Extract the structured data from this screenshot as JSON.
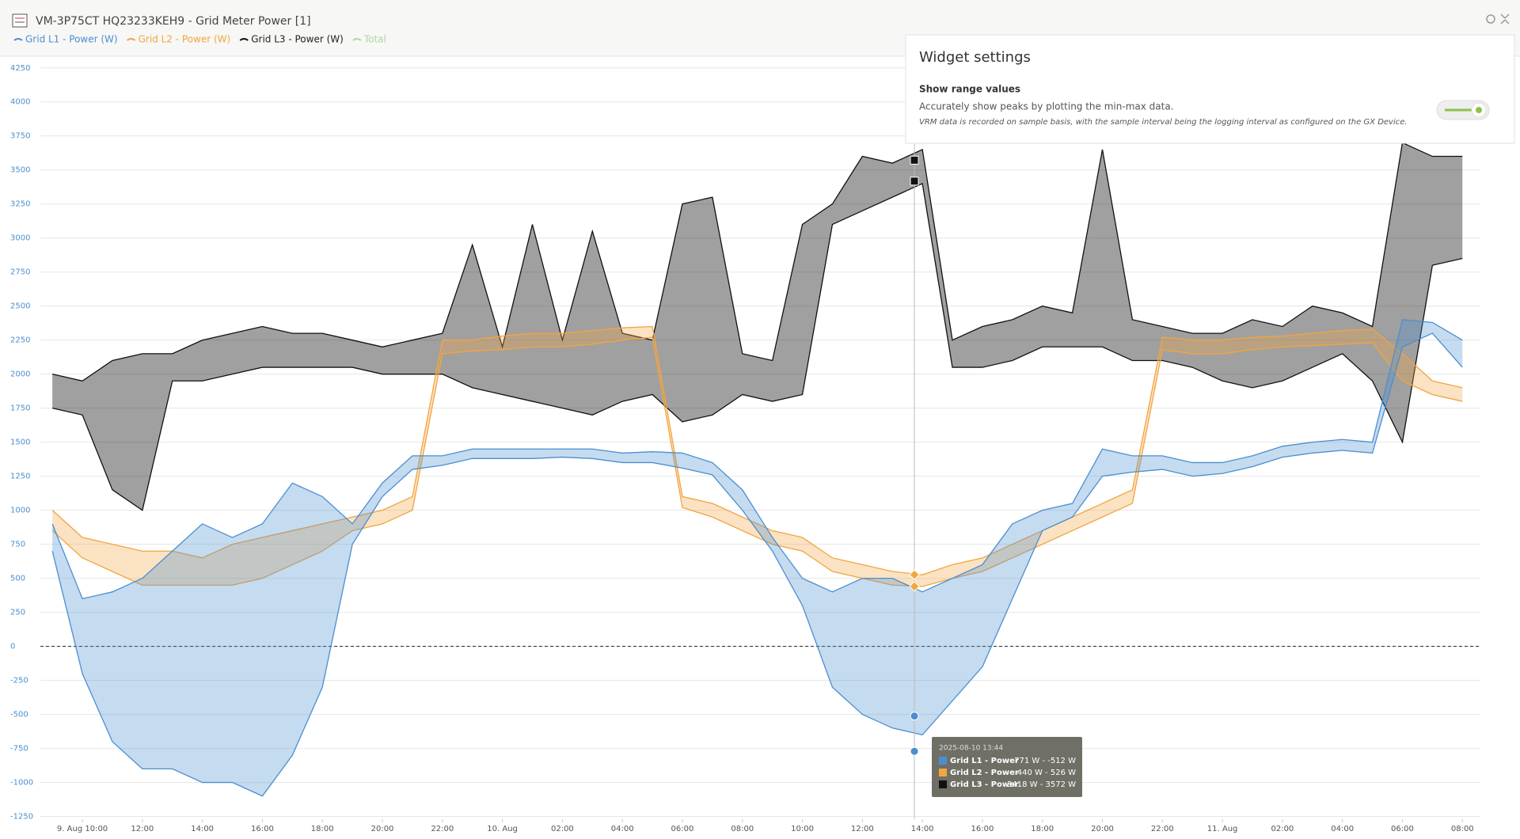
{
  "header": {
    "title": "VM-3P75CT HQ23233KEH9 - Grid Meter Power [1]"
  },
  "widget_settings": {
    "title": "Widget settings",
    "option_title": "Show range values",
    "option_description": "Accurately show peaks by plotting the min-max data.",
    "option_note": "VRM data is recorded on sample basis, with the sample interval being the logging interval as configured on the GX Device.",
    "toggle_on": true
  },
  "chart_data": {
    "type": "range-area",
    "xlim": [
      "2025-08-09T08:36",
      "2025-08-11T08:36"
    ],
    "ylim": [
      -1270,
      4330
    ],
    "yticks": [
      -1250,
      -1000,
      -750,
      -500,
      -250,
      0,
      250,
      500,
      750,
      1000,
      1250,
      1500,
      1750,
      2000,
      2250,
      2500,
      2750,
      3000,
      3250,
      3500,
      3750,
      4000,
      4250
    ],
    "grid": true,
    "xticks": [
      {
        "value": "2025-08-09T10:00",
        "label": "9. Aug 10:00"
      },
      {
        "value": "2025-08-09T12:00",
        "label": "12:00"
      },
      {
        "value": "2025-08-09T14:00",
        "label": "14:00"
      },
      {
        "value": "2025-08-09T16:00",
        "label": "16:00"
      },
      {
        "value": "2025-08-09T18:00",
        "label": "18:00"
      },
      {
        "value": "2025-08-09T20:00",
        "label": "20:00"
      },
      {
        "value": "2025-08-09T22:00",
        "label": "22:00"
      },
      {
        "value": "2025-08-10T00:00",
        "label": "10. Aug"
      },
      {
        "value": "2025-08-10T02:00",
        "label": "02:00"
      },
      {
        "value": "2025-08-10T04:00",
        "label": "04:00"
      },
      {
        "value": "2025-08-10T06:00",
        "label": "06:00"
      },
      {
        "value": "2025-08-10T08:00",
        "label": "08:00"
      },
      {
        "value": "2025-08-10T10:00",
        "label": "10:00"
      },
      {
        "value": "2025-08-10T12:00",
        "label": "12:00"
      },
      {
        "value": "2025-08-10T14:00",
        "label": "14:00"
      },
      {
        "value": "2025-08-10T16:00",
        "label": "16:00"
      },
      {
        "value": "2025-08-10T18:00",
        "label": "18:00"
      },
      {
        "value": "2025-08-10T20:00",
        "label": "20:00"
      },
      {
        "value": "2025-08-10T22:00",
        "label": "22:00"
      },
      {
        "value": "2025-08-11T00:00",
        "label": "11. Aug"
      },
      {
        "value": "2025-08-11T02:00",
        "label": "02:00"
      },
      {
        "value": "2025-08-11T04:00",
        "label": "04:00"
      },
      {
        "value": "2025-08-11T06:00",
        "label": "06:00"
      },
      {
        "value": "2025-08-11T08:00",
        "label": "08:00"
      }
    ],
    "x": [
      "2025-08-09T09:00",
      "2025-08-09T10:00",
      "2025-08-09T11:00",
      "2025-08-09T12:00",
      "2025-08-09T13:00",
      "2025-08-09T14:00",
      "2025-08-09T15:00",
      "2025-08-09T16:00",
      "2025-08-09T17:00",
      "2025-08-09T18:00",
      "2025-08-09T19:00",
      "2025-08-09T20:00",
      "2025-08-09T21:00",
      "2025-08-09T22:00",
      "2025-08-09T23:00",
      "2025-08-10T00:00",
      "2025-08-10T01:00",
      "2025-08-10T02:00",
      "2025-08-10T03:00",
      "2025-08-10T04:00",
      "2025-08-10T05:00",
      "2025-08-10T06:00",
      "2025-08-10T07:00",
      "2025-08-10T08:00",
      "2025-08-10T09:00",
      "2025-08-10T10:00",
      "2025-08-10T11:00",
      "2025-08-10T12:00",
      "2025-08-10T13:00",
      "2025-08-10T14:00",
      "2025-08-10T15:00",
      "2025-08-10T16:00",
      "2025-08-10T17:00",
      "2025-08-10T18:00",
      "2025-08-10T19:00",
      "2025-08-10T20:00",
      "2025-08-10T21:00",
      "2025-08-10T22:00",
      "2025-08-10T23:00",
      "2025-08-11T00:00",
      "2025-08-11T01:00",
      "2025-08-11T02:00",
      "2025-08-11T03:00",
      "2025-08-11T04:00",
      "2025-08-11T05:00",
      "2025-08-11T06:00",
      "2025-08-11T07:00",
      "2025-08-11T08:00"
    ],
    "series": [
      {
        "name": "Grid L1 - Power (W)",
        "color": "#4a8fd0",
        "marker": "circle",
        "high": [
          900,
          350,
          400,
          500,
          700,
          900,
          800,
          900,
          1200,
          1100,
          900,
          1200,
          1400,
          1400,
          1450,
          1450,
          1450,
          1450,
          1450,
          1420,
          1430,
          1420,
          1350,
          1150,
          800,
          500,
          400,
          500,
          500,
          400,
          500,
          600,
          900,
          1000,
          1050,
          1450,
          1400,
          1400,
          1350,
          1350,
          1400,
          1470,
          1500,
          1520,
          1500,
          2400,
          2380,
          2250
        ],
        "low": [
          700,
          -200,
          -700,
          -900,
          -900,
          -1000,
          -1000,
          -1100,
          -800,
          -300,
          750,
          1100,
          1300,
          1330,
          1380,
          1380,
          1380,
          1390,
          1380,
          1350,
          1350,
          1310,
          1260,
          1000,
          700,
          300,
          -300,
          -500,
          -600,
          -650,
          -400,
          -150,
          350,
          850,
          950,
          1250,
          1280,
          1300,
          1250,
          1270,
          1320,
          1390,
          1420,
          1440,
          1420,
          2200,
          2300,
          2050
        ]
      },
      {
        "name": "Grid L2 - Power (W)",
        "color": "#f2a541",
        "marker": "diamond",
        "high": [
          1000,
          800,
          750,
          700,
          700,
          650,
          750,
          800,
          850,
          900,
          950,
          1000,
          1100,
          2250,
          2250,
          2280,
          2300,
          2300,
          2320,
          2340,
          2350,
          1100,
          1050,
          950,
          850,
          800,
          650,
          600,
          550,
          526,
          600,
          650,
          750,
          850,
          950,
          1050,
          1150,
          2270,
          2250,
          2250,
          2270,
          2280,
          2300,
          2320,
          2330,
          2150,
          1950,
          1900
        ],
        "low": [
          850,
          650,
          550,
          450,
          450,
          450,
          450,
          500,
          600,
          700,
          850,
          900,
          1000,
          2150,
          2170,
          2180,
          2200,
          2200,
          2220,
          2250,
          2270,
          1020,
          950,
          850,
          750,
          700,
          550,
          500,
          450,
          440,
          500,
          550,
          650,
          750,
          850,
          950,
          1050,
          2180,
          2150,
          2150,
          2180,
          2200,
          2210,
          2220,
          2230,
          1950,
          1850,
          1800
        ]
      },
      {
        "name": "Grid L3 - Power (W)",
        "color": "#111111",
        "marker": "square",
        "high": [
          2000,
          1950,
          2100,
          2150,
          2150,
          2250,
          2300,
          2350,
          2300,
          2300,
          2250,
          2200,
          2250,
          2300,
          2950,
          2200,
          3100,
          2250,
          3050,
          2300,
          2250,
          3250,
          3300,
          2150,
          2100,
          3100,
          3250,
          3600,
          3550,
          3650,
          2250,
          2350,
          2400,
          2500,
          2450,
          3650,
          2400,
          2350,
          2300,
          2300,
          2400,
          2350,
          2500,
          2450,
          2350,
          3700,
          3600,
          3600
        ],
        "low": [
          1750,
          1700,
          1150,
          1000,
          1950,
          1950,
          2000,
          2050,
          2050,
          2050,
          2050,
          2000,
          2000,
          2000,
          1900,
          1850,
          1800,
          1750,
          1700,
          1800,
          1850,
          1650,
          1700,
          1850,
          1800,
          1850,
          3100,
          3200,
          3300,
          3400,
          2050,
          2050,
          2100,
          2200,
          2200,
          2200,
          2100,
          2100,
          2050,
          1950,
          1900,
          1950,
          2050,
          2150,
          1950,
          1500,
          2800,
          2850
        ]
      },
      {
        "name": "Total",
        "color": "#a9d8a0",
        "visible": false
      }
    ],
    "tooltip": {
      "x": "2025-08-10T13:44",
      "title": "2025-08-10 13:44",
      "rows": [
        {
          "name": "Grid L1 - Power",
          "low": -771,
          "high": -512,
          "label": "-771 W - -512 W"
        },
        {
          "name": "Grid L2 - Power",
          "low": 440,
          "high": 526,
          "label": "440 W - 526 W"
        },
        {
          "name": "Grid L3 - Power",
          "low": 3418,
          "high": 3572,
          "label": "3418 W - 3572 W"
        }
      ]
    }
  }
}
